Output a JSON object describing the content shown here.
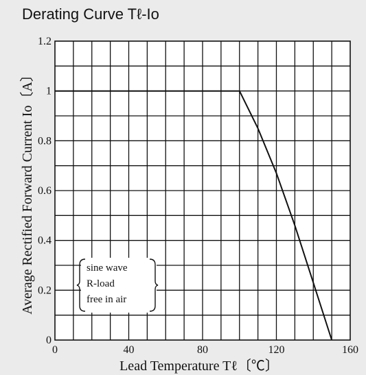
{
  "chart_data": {
    "type": "line",
    "title": "Derating Curve Tℓ-Io",
    "xlabel": "Lead Temperature  Tℓ〔℃〕",
    "ylabel": "Average Rectified Forward Current Io〔A〕",
    "xlim": [
      0,
      160
    ],
    "ylim": [
      0,
      1.2
    ],
    "x_ticks": [
      "0",
      "40",
      "80",
      "120",
      "160"
    ],
    "y_ticks": [
      "0",
      "0.2",
      "0.4",
      "0.6",
      "0.8",
      "1",
      "1.2"
    ],
    "grid": true,
    "series": [
      {
        "x": [
          0,
          100,
          110,
          120,
          130,
          140,
          150
        ],
        "y": [
          1.0,
          1.0,
          0.85,
          0.67,
          0.46,
          0.23,
          0.0
        ]
      }
    ],
    "annotations": [
      "sine wave",
      "R-load",
      "free in air"
    ]
  }
}
